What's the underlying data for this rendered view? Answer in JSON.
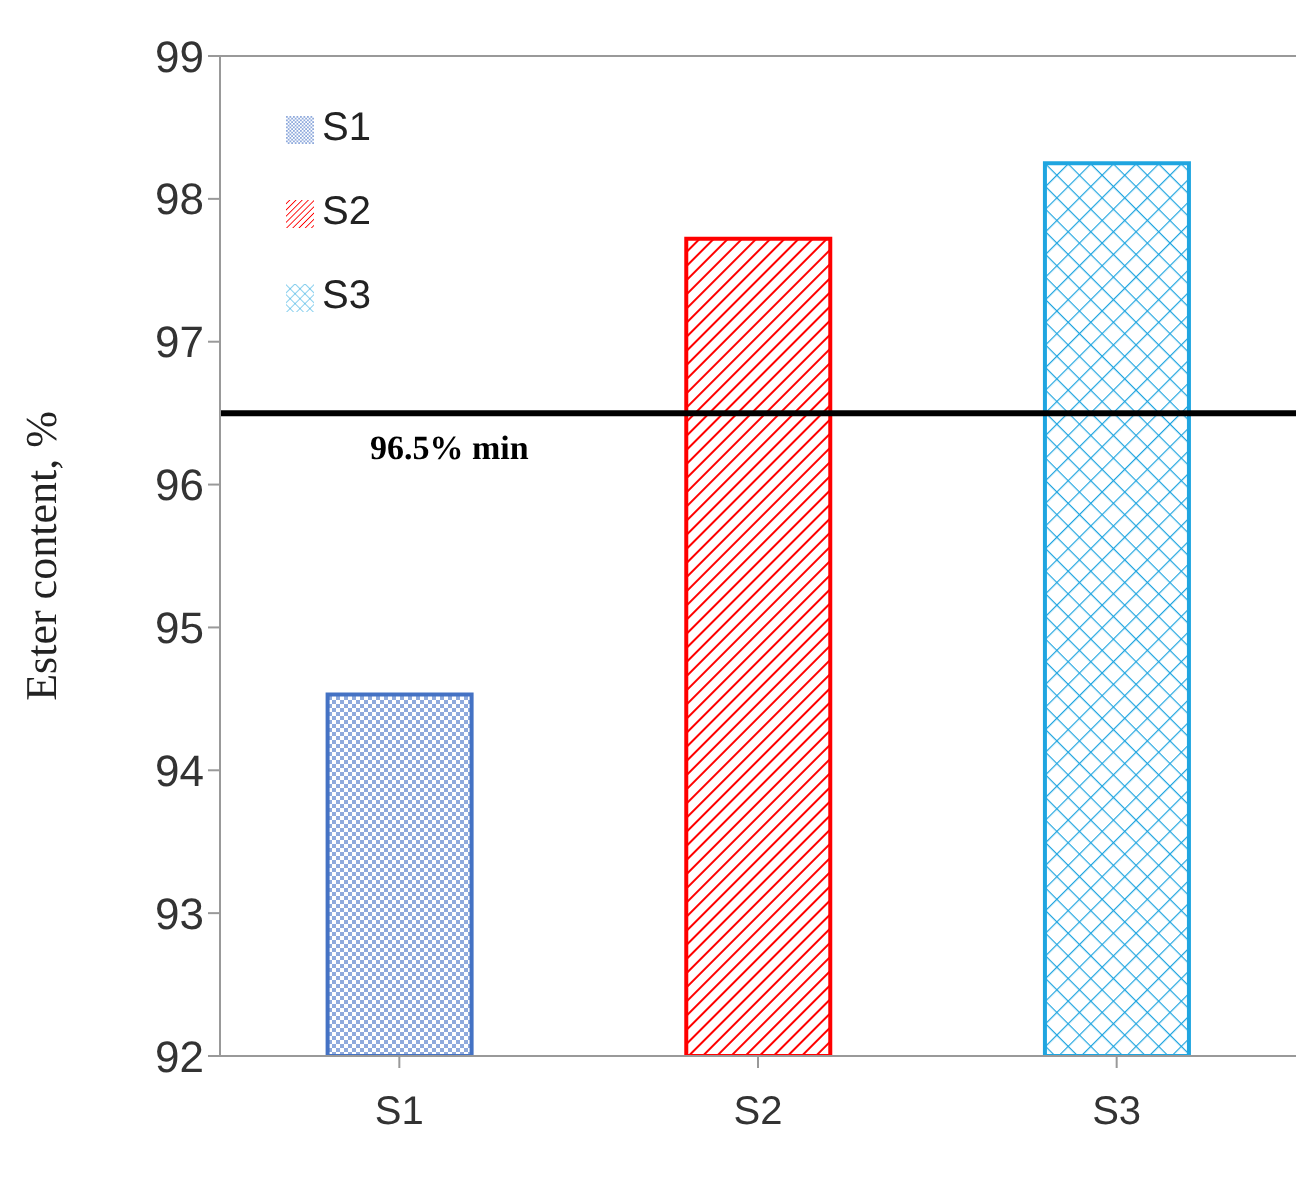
{
  "chart_data": {
    "type": "bar",
    "ylabel": "Ester content, %",
    "categories": [
      "S1",
      "S2",
      "S3"
    ],
    "series": [
      {
        "name": "S1",
        "color": "#4472c4",
        "values": [
          94.53,
          null,
          null
        ]
      },
      {
        "name": "S2",
        "color": "#ff0000",
        "values": [
          null,
          97.72,
          null
        ]
      },
      {
        "name": "S3",
        "color": "#1fa5e0",
        "values": [
          null,
          null,
          98.25
        ]
      }
    ],
    "ylim": [
      92,
      99
    ],
    "yticks": [
      92,
      93,
      94,
      95,
      96,
      97,
      98,
      99
    ],
    "grid": false,
    "legend": "top left",
    "ref_lines": [
      {
        "axis": "y",
        "value": 96.5,
        "label": "96.5% min",
        "color": "#000000"
      }
    ]
  }
}
